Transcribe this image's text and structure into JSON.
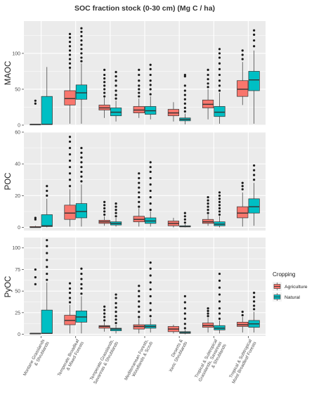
{
  "chart_data": {
    "type": "box",
    "title": "SOC fraction stock (0-30 cm) (Mg C / ha)",
    "xlabel": "",
    "ylabel": "",
    "categories": [
      "Montane Grasslands\n& Shrublands",
      "Temperate Broadleaf\n& Mixed Forests",
      "Temperate Grasslands,\nSavannas & Shrublands",
      "Mediterranean Forests,\nWoodlands & Scrub",
      "Deserts &\nXeric Shrublands",
      "Tropical & Subtropical\nGrasslands, Savannas\n& Shrublands",
      "Tropical & Subtropical\nMoist Broadleaf Forests"
    ],
    "legend": {
      "title": "Cropping",
      "placement": "right",
      "entries": [
        {
          "name": "Agriculture",
          "color": "#F8766D"
        },
        {
          "name": "Natural",
          "color": "#00BFC4"
        }
      ]
    },
    "grid": true,
    "panels": [
      {
        "name": "MAOC",
        "ylim": [
          0,
          145
        ],
        "yticks": [
          0,
          50,
          100
        ],
        "series": [
          {
            "name": "Agriculture",
            "boxes": [
              {
                "min": 1,
                "q1": 1,
                "median": 1,
                "q3": 1,
                "max": 1,
                "outliers": [
                  30,
                  34
                ]
              },
              {
                "min": 2,
                "q1": 28,
                "median": 37,
                "q3": 48,
                "max": 78,
                "outliers": [
                  80,
                  86,
                  92,
                  98,
                  104,
                  110,
                  116,
                  122,
                  127
                ]
              },
              {
                "min": 10,
                "q1": 21,
                "median": 24,
                "q3": 28,
                "max": 38,
                "outliers": [
                  40,
                  45,
                  50,
                  55,
                  60,
                  65,
                  70,
                  77
                ]
              },
              {
                "min": 10,
                "q1": 17,
                "median": 21,
                "q3": 26,
                "max": 37,
                "outliers": [
                  40,
                  45,
                  50,
                  55,
                  62,
                  70,
                  77
                ]
              },
              {
                "min": 5,
                "q1": 13,
                "median": 17,
                "q3": 22,
                "max": 32,
                "outliers": []
              },
              {
                "min": 8,
                "q1": 24,
                "median": 29,
                "q3": 35,
                "max": 50,
                "outliers": [
                  53,
                  58,
                  64,
                  70,
                  77
                ]
              },
              {
                "min": 28,
                "q1": 40,
                "median": 50,
                "q3": 62,
                "max": 88,
                "outliers": [
                  92,
                  98,
                  104
                ]
              }
            ]
          },
          {
            "name": "Natural",
            "boxes": [
              {
                "min": 1,
                "q1": 1,
                "median": 1,
                "q3": 40,
                "max": 81,
                "outliers": []
              },
              {
                "min": 2,
                "q1": 36,
                "median": 45,
                "q3": 56,
                "max": 86,
                "outliers": [
                  89,
                  94,
                  100,
                  106,
                  112,
                  118,
                  124,
                  130,
                  135
                ]
              },
              {
                "min": 5,
                "q1": 13,
                "median": 18,
                "q3": 24,
                "max": 34,
                "outliers": [
                  37,
                  42,
                  48,
                  55,
                  62,
                  68,
                  74
                ]
              },
              {
                "min": 8,
                "q1": 15,
                "median": 20,
                "q3": 26,
                "max": 40,
                "outliers": [
                  43,
                  50,
                  56,
                  62,
                  70,
                  78,
                  84
                ]
              },
              {
                "min": 1,
                "q1": 6,
                "median": 8,
                "q3": 10,
                "max": 16,
                "outliers": [
                  19,
                  24,
                  30,
                  36,
                  42,
                  48,
                  55,
                  68,
                  70
                ]
              },
              {
                "min": 2,
                "q1": 12,
                "median": 18,
                "q3": 26,
                "max": 45,
                "outliers": [
                  48,
                  55,
                  62,
                  70,
                  78,
                  86,
                  94,
                  100,
                  106
                ]
              },
              {
                "min": 2,
                "q1": 48,
                "median": 63,
                "q3": 75,
                "max": 104,
                "outliers": [
                  110,
                  118,
                  126,
                  132
                ]
              }
            ]
          }
        ]
      },
      {
        "name": "POC",
        "ylim": [
          -2,
          60
        ],
        "yticks": [
          0,
          20,
          40,
          60
        ],
        "series": [
          {
            "name": "Agriculture",
            "boxes": [
              {
                "min": 0,
                "q1": 0,
                "median": 0,
                "q3": 0.5,
                "max": 1,
                "outliers": [
                  5,
                  6
                ]
              },
              {
                "min": 0.5,
                "q1": 5,
                "median": 9,
                "q3": 14,
                "max": 24,
                "outliers": [
                  26,
                  30,
                  34,
                  38,
                  42,
                  46,
                  50,
                  54,
                  57
                ]
              },
              {
                "min": 1,
                "q1": 2.5,
                "median": 3.5,
                "q3": 4.5,
                "max": 7,
                "outliers": [
                  8,
                  10,
                  12,
                  14,
                  16
                ]
              },
              {
                "min": 0.5,
                "q1": 3.5,
                "median": 5,
                "q3": 7,
                "max": 12,
                "outliers": [
                  13,
                  16,
                  19,
                  22,
                  25,
                  28,
                  31,
                  34
                ]
              },
              {
                "min": 0,
                "q1": 1,
                "median": 2.5,
                "q3": 4,
                "max": 6,
                "outliers": []
              },
              {
                "min": 1,
                "q1": 2.5,
                "median": 3.5,
                "q3": 5,
                "max": 8,
                "outliers": [
                  9,
                  11,
                  13,
                  15,
                  17,
                  19
                ]
              },
              {
                "min": 0.5,
                "q1": 6,
                "median": 9,
                "q3": 13,
                "max": 22,
                "outliers": [
                  24,
                  26,
                  28
                ]
              }
            ]
          },
          {
            "name": "Natural",
            "boxes": [
              {
                "min": 0,
                "q1": 0.5,
                "median": 1,
                "q3": 8,
                "max": 18,
                "outliers": [
                  20,
                  23,
                  26
                ]
              },
              {
                "min": 0.5,
                "q1": 6,
                "median": 10,
                "q3": 15,
                "max": 27,
                "outliers": [
                  29,
                  32,
                  35,
                  38,
                  41,
                  44,
                  47,
                  50
                ]
              },
              {
                "min": 0.5,
                "q1": 1.5,
                "median": 2.5,
                "q3": 3.5,
                "max": 6,
                "outliers": [
                  7,
                  9,
                  11,
                  13,
                  15
                ]
              },
              {
                "min": 0.5,
                "q1": 2.5,
                "median": 4,
                "q3": 6,
                "max": 10,
                "outliers": [
                  11,
                  15,
                  19,
                  23,
                  27,
                  31,
                  35,
                  38,
                  41
                ]
              },
              {
                "min": 0,
                "q1": 0.3,
                "median": 0.5,
                "q3": 1,
                "max": 2,
                "outliers": [
                  3,
                  5,
                  7,
                  9
                ]
              },
              {
                "min": 0,
                "q1": 1,
                "median": 2,
                "q3": 3.5,
                "max": 7,
                "outliers": [
                  8,
                  10,
                  12,
                  14,
                  16,
                  18,
                  20,
                  22
                ]
              },
              {
                "min": 1,
                "q1": 9,
                "median": 13,
                "q3": 18,
                "max": 28,
                "outliers": [
                  30,
                  33,
                  36,
                  39
                ]
              }
            ]
          }
        ]
      },
      {
        "name": "PyOC",
        "ylim": [
          -2,
          112
        ],
        "yticks": [
          0,
          25,
          50,
          75,
          100
        ],
        "series": [
          {
            "name": "Agriculture",
            "boxes": [
              {
                "min": 1,
                "q1": 1,
                "median": 1,
                "q3": 1,
                "max": 1,
                "outliers": [
                  58,
                  66,
                  75
                ]
              },
              {
                "min": 1,
                "q1": 11,
                "median": 16,
                "q3": 22,
                "max": 34,
                "outliers": [
                  37,
                  42,
                  48,
                  53,
                  59
                ]
              },
              {
                "min": 3,
                "q1": 7,
                "median": 9,
                "q3": 10,
                "max": 14,
                "outliers": [
                  16,
                  20,
                  24,
                  28,
                  32
                ]
              },
              {
                "min": 1,
                "q1": 6,
                "median": 9,
                "q3": 11,
                "max": 18,
                "outliers": [
                  20,
                  26,
                  32,
                  38,
                  44,
                  50,
                  56
                ]
              },
              {
                "min": 1,
                "q1": 3,
                "median": 6,
                "q3": 9,
                "max": 11,
                "outliers": []
              },
              {
                "min": 2,
                "q1": 8,
                "median": 10,
                "q3": 13,
                "max": 19,
                "outliers": [
                  21,
                  24,
                  27,
                  30
                ]
              },
              {
                "min": 2,
                "q1": 9,
                "median": 11,
                "q3": 14,
                "max": 20,
                "outliers": [
                  22,
                  26
                ]
              }
            ]
          },
          {
            "name": "Natural",
            "boxes": [
              {
                "min": 1,
                "q1": 1,
                "median": 1,
                "q3": 28,
                "max": 60,
                "outliers": [
                  63,
                  70,
                  78,
                  86,
                  94,
                  102,
                  109
                ]
              },
              {
                "min": 1,
                "q1": 14,
                "median": 20,
                "q3": 27,
                "max": 44,
                "outliers": [
                  47,
                  53,
                  58,
                  64,
                  70,
                  76
                ]
              },
              {
                "min": 1,
                "q1": 4,
                "median": 6,
                "q3": 7,
                "max": 11,
                "outliers": [
                  13,
                  17,
                  21,
                  26,
                  31,
                  36,
                  42,
                  46
                ]
              },
              {
                "min": 2,
                "q1": 7,
                "median": 9,
                "q3": 11,
                "max": 18,
                "outliers": [
                  21,
                  28,
                  36,
                  44,
                  52,
                  60,
                  68,
                  76,
                  83
                ]
              },
              {
                "min": 0,
                "q1": 1,
                "median": 2,
                "q3": 3,
                "max": 5,
                "outliers": [
                  7,
                  12,
                  18,
                  24,
                  30,
                  37,
                  44
                ]
              },
              {
                "min": 1,
                "q1": 5,
                "median": 7,
                "q3": 10,
                "max": 16,
                "outliers": [
                  18,
                  24,
                  30,
                  38,
                  46,
                  54,
                  62,
                  70
                ]
              },
              {
                "min": 2,
                "q1": 8,
                "median": 12,
                "q3": 16,
                "max": 26,
                "outliers": [
                  29,
                  33,
                  38,
                  43,
                  48
                ]
              }
            ]
          }
        ]
      }
    ]
  }
}
